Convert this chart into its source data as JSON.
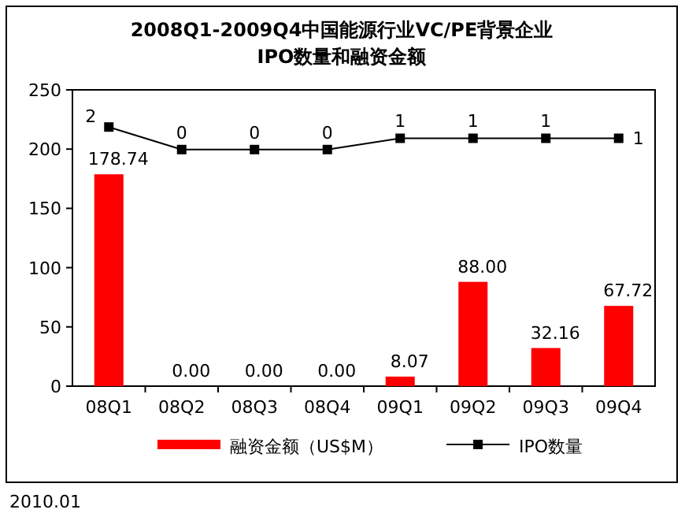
{
  "chart_data": {
    "type": "bar",
    "title": "2008Q1-2009Q4中国能源行业VC/PE背景企业",
    "subtitle": "IPO数量和融资金额",
    "categories": [
      "08Q1",
      "08Q2",
      "08Q3",
      "08Q4",
      "09Q1",
      "09Q2",
      "09Q3",
      "09Q4"
    ],
    "series": [
      {
        "name": "融资金额（US$M）",
        "color": "#ff0000",
        "values": [
          178.74,
          0,
          0,
          0,
          8.07,
          88,
          32.16,
          67.72
        ],
        "value_labels": [
          "178.74",
          "0.00",
          "0.00",
          "0.00",
          "8.07",
          "88.00",
          "32.16",
          "67.72"
        ]
      },
      {
        "name": "IPO数量",
        "type": "line",
        "axis": "y2",
        "color": "#000000",
        "marker": "square",
        "values": [
          2,
          0,
          0,
          0,
          1,
          1,
          1,
          1
        ],
        "value_labels": [
          "2",
          "0",
          "0",
          "0",
          "1",
          "1",
          "1",
          "1"
        ]
      }
    ],
    "ylim": [
      0,
      250
    ],
    "yticks": [
      0,
      50,
      100,
      150,
      200,
      250
    ],
    "y2lim": [
      -21,
      5.3
    ],
    "legend": "bottom",
    "annotations": [
      "2010.01"
    ]
  }
}
